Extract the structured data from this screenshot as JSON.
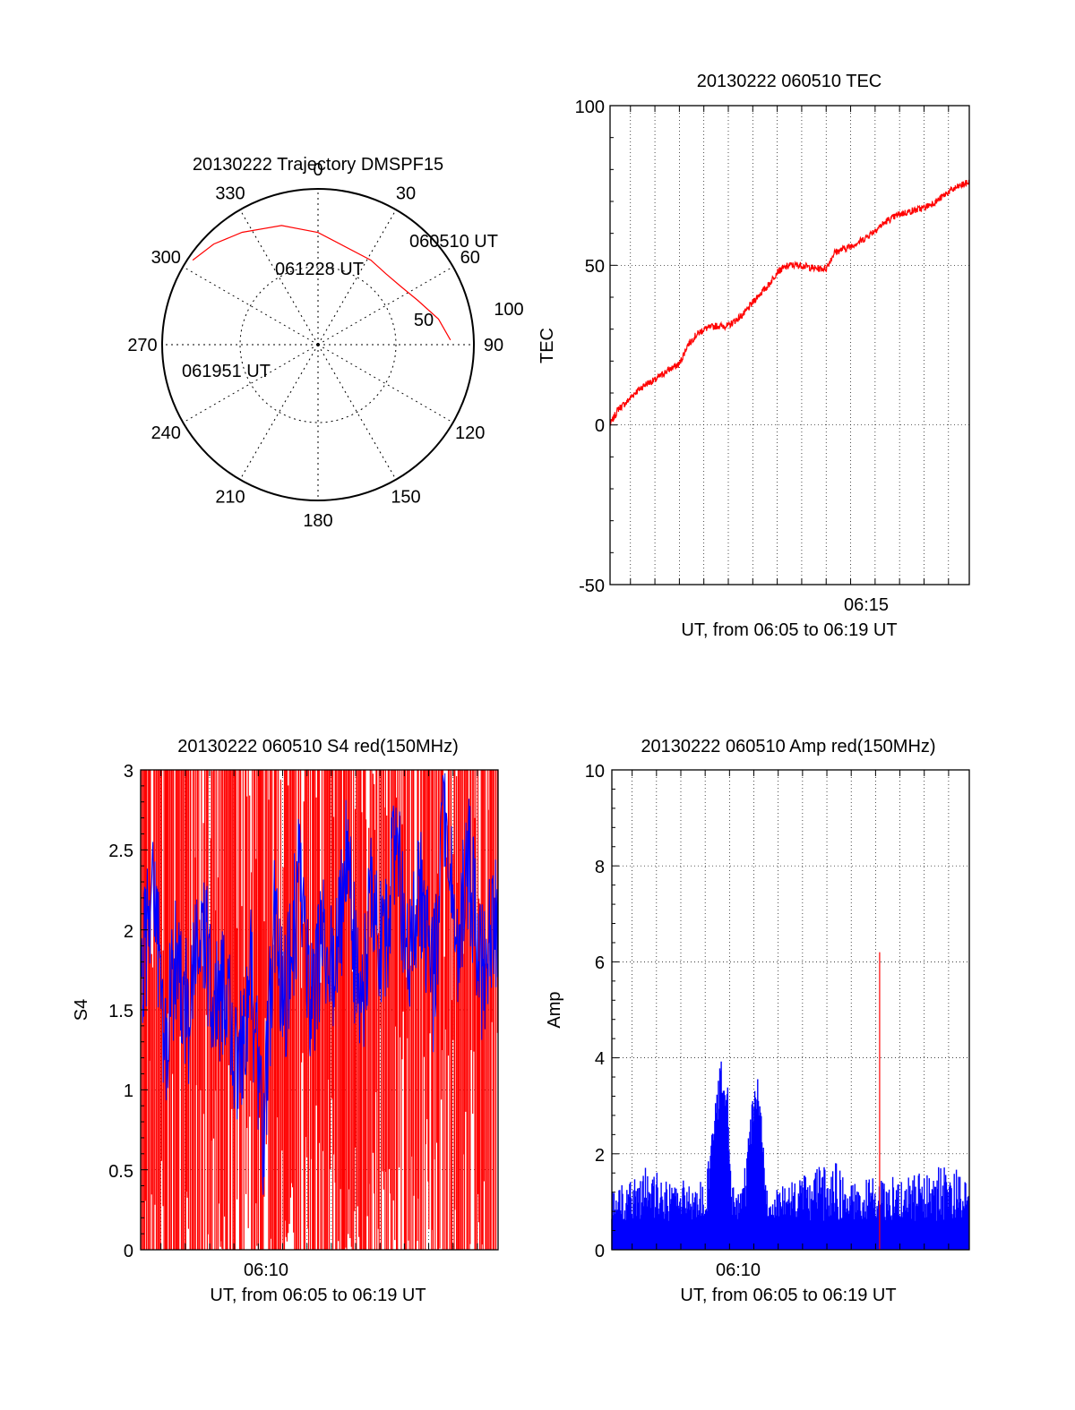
{
  "colors": {
    "primary": "#ff0000",
    "secondary": "#0000ff",
    "axes": "#000000",
    "grid": "#000000",
    "background": "#ffffff"
  },
  "polar": {
    "title": "20130222 Trajectory DMSPF15",
    "azimuth_labels": [
      "0",
      "30",
      "60",
      "90",
      "120",
      "150",
      "180",
      "210",
      "240",
      "270",
      "300",
      "330"
    ],
    "elevation_labels": [
      "50",
      "100"
    ],
    "start_label": "060510 UT",
    "mid_label": "061228 UT",
    "end_label": "061951 UT"
  },
  "tec": {
    "title": "20130222 060510 TEC",
    "ylabel": "TEC",
    "ytick_labels": [
      "100",
      "50",
      "0",
      "-50"
    ],
    "xtick_label": "06:15",
    "xlabel": "UT, from 06:05 to 06:19 UT"
  },
  "s4": {
    "title": "20130222 060510 S4 red(150MHz)",
    "ylabel": "S4",
    "ytick_labels": [
      "3",
      "2.5",
      "2",
      "1.5",
      "1",
      "0.5",
      "0"
    ],
    "xtick_label": "06:10",
    "xlabel": "UT, from 06:05 to 06:19 UT"
  },
  "amp": {
    "title": "20130222 060510 Amp red(150MHz)",
    "ylabel": "Amp",
    "ytick_labels": [
      "10",
      "8",
      "6",
      "4",
      "2",
      "0"
    ],
    "xtick_label": "06:10",
    "xlabel": "UT, from 06:05 to 06:19 UT"
  },
  "chart_data": [
    {
      "type": "scatter",
      "title": "20130222 Trajectory DMSPF15",
      "projection": "polar",
      "azimuth_deg_clockwise_from_north": true,
      "radial_range": [
        0,
        100
      ],
      "series": [
        {
          "color": "#ff0000",
          "points": [
            {
              "time": "060510 UT",
              "az": 88,
              "r": 85
            },
            {
              "az": 78,
              "r": 79
            },
            {
              "az": 66,
              "r": 70
            },
            {
              "az": 55,
              "r": 65
            },
            {
              "az": 44,
              "r": 63
            },
            {
              "time": "061228 UT",
              "az": 32,
              "r": 64
            },
            {
              "az": 0,
              "r": 72
            },
            {
              "az": -17,
              "r": 80
            },
            {
              "az": -34,
              "r": 87
            },
            {
              "az": -46,
              "r": 93
            },
            {
              "time": "061951 UT",
              "az": -56,
              "r": 97
            }
          ]
        }
      ]
    },
    {
      "type": "line",
      "title": "20130222 060510 TEC",
      "xlabel": "UT, from 06:05 to 06:19 UT",
      "ylabel": "TEC",
      "xlim": [
        "06:05:10",
        "06:19:51"
      ],
      "ylim": [
        -50,
        100
      ],
      "xticks": [
        "06:15"
      ],
      "yticks": [
        -50,
        0,
        50,
        100
      ],
      "grid": true,
      "series": [
        {
          "color": "#ff0000",
          "x": [
            "06:05:10",
            "06:05:30",
            "06:05:50",
            "06:06:10",
            "06:06:40",
            "06:07:00",
            "06:07:30",
            "06:08:00",
            "06:08:20",
            "06:08:40",
            "06:09:00",
            "06:09:30",
            "06:10:00",
            "06:10:40",
            "06:11:10",
            "06:11:40",
            "06:12:00",
            "06:12:30",
            "06:13:00",
            "06:13:30",
            "06:14:00",
            "06:14:20",
            "06:14:40",
            "06:15:00",
            "06:15:30",
            "06:16:00",
            "06:16:30",
            "06:17:00",
            "06:17:30",
            "06:18:00",
            "06:18:30",
            "06:19:00",
            "06:19:30",
            "06:19:51"
          ],
          "y": [
            0,
            5,
            7,
            10,
            13,
            14,
            17,
            19,
            25,
            28,
            30,
            31,
            31,
            35,
            40,
            44,
            48,
            50,
            50,
            49,
            49,
            54,
            55,
            56,
            58,
            61,
            64,
            66,
            67,
            68,
            70,
            73,
            75,
            76
          ]
        }
      ]
    },
    {
      "type": "line",
      "title": "20130222 060510 S4 red(150MHz)",
      "xlabel": "UT, from 06:05 to 06:19 UT",
      "ylabel": "S4",
      "xlim": [
        "06:05:10",
        "06:19:51"
      ],
      "ylim": [
        0,
        3
      ],
      "xticks": [
        "06:10"
      ],
      "yticks": [
        0,
        0.5,
        1,
        1.5,
        2,
        2.5,
        3
      ],
      "grid": true,
      "series": [
        {
          "color": "#ff0000",
          "description_range": [
            0,
            3
          ],
          "x": [
            "06:05:10",
            "06:05:50",
            "06:06:30",
            "06:07:10",
            "06:07:50",
            "06:08:30",
            "06:09:10",
            "06:09:50",
            "06:10:30",
            "06:11:10",
            "06:11:50",
            "06:12:30",
            "06:13:10",
            "06:13:50",
            "06:14:30",
            "06:15:10",
            "06:15:50",
            "06:16:30",
            "06:17:10",
            "06:17:50",
            "06:18:30",
            "06:19:10",
            "06:19:51"
          ],
          "y": [
            3,
            0,
            3,
            0,
            3,
            0,
            3,
            0.5,
            3,
            0,
            3,
            1.5,
            3,
            0,
            3,
            1.5,
            3,
            0,
            3,
            1.5,
            3,
            0,
            3
          ]
        },
        {
          "color": "#0000ff",
          "x": [
            "06:05:10",
            "06:05:40",
            "06:06:10",
            "06:06:40",
            "06:07:10",
            "06:07:40",
            "06:08:10",
            "06:08:40",
            "06:09:10",
            "06:09:40",
            "06:10:10",
            "06:10:40",
            "06:11:10",
            "06:11:40",
            "06:12:10",
            "06:12:40",
            "06:13:10",
            "06:13:40",
            "06:14:10",
            "06:14:40",
            "06:15:10",
            "06:15:40",
            "06:16:10",
            "06:16:40",
            "06:17:10",
            "06:17:40",
            "06:18:10",
            "06:18:40",
            "06:19:10",
            "06:19:51"
          ],
          "y": [
            1.6,
            2.4,
            1.2,
            1.9,
            1.4,
            2.1,
            1.5,
            1.7,
            1.0,
            1.8,
            0.65,
            2.0,
            1.6,
            2.3,
            1.5,
            1.9,
            1.7,
            2.5,
            1.4,
            2.2,
            1.8,
            2.6,
            1.7,
            2.3,
            1.6,
            2.8,
            1.9,
            2.4,
            1.7,
            2.1
          ]
        }
      ]
    },
    {
      "type": "line",
      "title": "20130222 060510 Amp red(150MHz)",
      "xlabel": "UT, from 06:05 to 06:19 UT",
      "ylabel": "Amp",
      "xlim": [
        "06:05:10",
        "06:19:51"
      ],
      "ylim": [
        0,
        10
      ],
      "xticks": [
        "06:10"
      ],
      "yticks": [
        0,
        2,
        4,
        6,
        8,
        10
      ],
      "grid": true,
      "series": [
        {
          "color": "#0000ff",
          "x": [
            "06:05:10",
            "06:06:00",
            "06:06:50",
            "06:07:10",
            "06:08:00",
            "06:09:00",
            "06:09:45",
            "06:09:55",
            "06:10:05",
            "06:10:30",
            "06:11:05",
            "06:11:15",
            "06:11:30",
            "06:12:30",
            "06:13:30",
            "06:14:20",
            "06:15:00",
            "06:15:40",
            "06:16:30",
            "06:17:20",
            "06:18:10",
            "06:19:00",
            "06:19:51"
          ],
          "y": [
            1.2,
            1.5,
            2.0,
            1.4,
            1.5,
            1.4,
            4.4,
            3.5,
            1.3,
            1.3,
            3.7,
            3.5,
            1.3,
            1.4,
            1.7,
            1.9,
            1.4,
            1.5,
            1.5,
            1.6,
            1.6,
            1.9,
            1.3
          ]
        },
        {
          "color": "#ff0000",
          "x": [
            "06:16:10"
          ],
          "y": [
            6.2
          ]
        }
      ]
    }
  ]
}
